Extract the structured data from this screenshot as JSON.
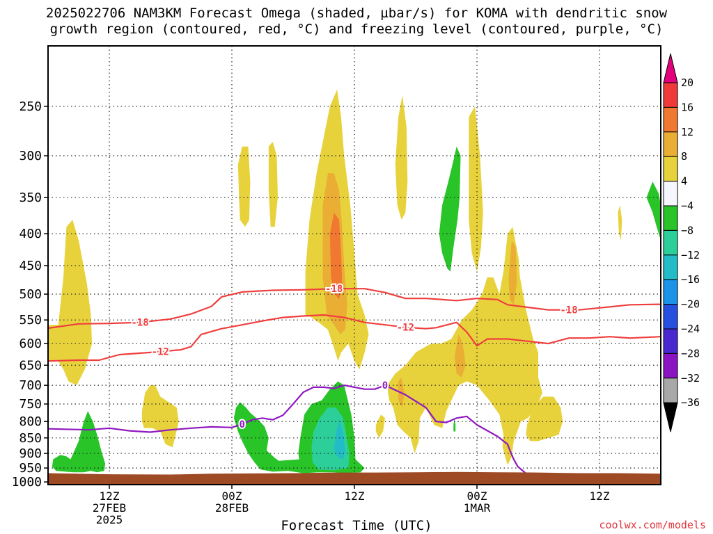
{
  "title": {
    "line1": "2025022706 NAM3KM Forecast Omega (shaded, µbar/s) for KOMA with dendritic snow",
    "line2": "growth region (contoured, red, °C) and freezing level (contoured, purple, °C)"
  },
  "credit": "coolwx.com/models",
  "chart_data": {
    "type": "time-height contour",
    "x_axis": {
      "label": "Forecast Time (UTC)",
      "ticks": [
        {
          "lines": [
            "12Z",
            "27FEB",
            "2025"
          ],
          "hour": 6
        },
        {
          "lines": [
            "00Z",
            "28FEB"
          ],
          "hour": 18
        },
        {
          "lines": [
            "12Z"
          ],
          "hour": 30
        },
        {
          "lines": [
            "00Z",
            "1MAR"
          ],
          "hour": 42
        },
        {
          "lines": [
            "12Z"
          ],
          "hour": 54
        }
      ],
      "range_hours": [
        0,
        60
      ]
    },
    "y_axis": {
      "units": "hPa",
      "ticks": [
        250,
        300,
        350,
        400,
        450,
        500,
        550,
        600,
        650,
        700,
        750,
        800,
        850,
        900,
        950,
        1000
      ],
      "range": [
        200,
        1010
      ]
    },
    "colorbar": {
      "labels": [
        "20",
        "16",
        "12",
        "8",
        "4",
        "−4",
        "−8",
        "−12",
        "−16",
        "−20",
        "−24",
        "−28",
        "−32",
        "−36"
      ],
      "colors": [
        "#e4007c",
        "#f03a3a",
        "#f07830",
        "#ebae35",
        "#e8d23c",
        "#f6f6ff",
        "#28c428",
        "#2ccf9a",
        "#22bcc8",
        "#1b93e8",
        "#2550e0",
        "#4a28d0",
        "#8a14c4",
        "#a8a8a8",
        "#000000"
      ]
    },
    "contours": [
      {
        "name": "-18",
        "color": "#ef3e3e",
        "points": [
          [
            0,
            567
          ],
          [
            3,
            558
          ],
          [
            6,
            557
          ],
          [
            9,
            555
          ],
          [
            12,
            548
          ],
          [
            14,
            538
          ],
          [
            16,
            523
          ],
          [
            17,
            505
          ],
          [
            19,
            496
          ],
          [
            22,
            493
          ],
          [
            25,
            492
          ],
          [
            28,
            490
          ],
          [
            31,
            490
          ],
          [
            33,
            497
          ],
          [
            35,
            508
          ],
          [
            37,
            508
          ],
          [
            40,
            512
          ],
          [
            42,
            508
          ],
          [
            44,
            510
          ],
          [
            45,
            520
          ],
          [
            47,
            525
          ],
          [
            49,
            530
          ],
          [
            52,
            530
          ],
          [
            54,
            526
          ],
          [
            57,
            520
          ],
          [
            60,
            519
          ]
        ],
        "labels": [
          [
            9,
            "-18"
          ],
          [
            28,
            "-18"
          ],
          [
            51,
            "-18"
          ]
        ]
      },
      {
        "name": "-12",
        "color": "#ef3e3e",
        "points": [
          [
            0,
            640
          ],
          [
            3,
            638
          ],
          [
            5,
            638
          ],
          [
            7,
            625
          ],
          [
            10,
            620
          ],
          [
            13,
            614
          ],
          [
            14,
            607
          ],
          [
            15,
            580
          ],
          [
            17,
            568
          ],
          [
            19,
            560
          ],
          [
            21,
            552
          ],
          [
            23,
            545
          ],
          [
            25,
            542
          ],
          [
            27,
            540
          ],
          [
            29,
            545
          ],
          [
            31,
            555
          ],
          [
            33,
            560
          ],
          [
            35,
            565
          ],
          [
            37,
            568
          ],
          [
            38,
            566
          ],
          [
            40,
            555
          ],
          [
            41,
            575
          ],
          [
            42,
            605
          ],
          [
            43,
            590
          ],
          [
            45,
            590
          ],
          [
            47,
            595
          ],
          [
            49,
            600
          ],
          [
            51,
            588
          ],
          [
            53,
            588
          ],
          [
            55,
            585
          ],
          [
            57,
            588
          ],
          [
            60,
            585
          ]
        ],
        "labels": [
          [
            11,
            "-12"
          ],
          [
            35,
            "-12"
          ]
        ]
      },
      {
        "name": "0",
        "color": "#9018c0",
        "points": [
          [
            0,
            822
          ],
          [
            4,
            825
          ],
          [
            6,
            820
          ],
          [
            8,
            828
          ],
          [
            10,
            832
          ],
          [
            12,
            825
          ],
          [
            14,
            820
          ],
          [
            16,
            816
          ],
          [
            18,
            818
          ],
          [
            19,
            808
          ],
          [
            20,
            795
          ],
          [
            21,
            790
          ],
          [
            22,
            795
          ],
          [
            23,
            782
          ],
          [
            24,
            750
          ],
          [
            25,
            718
          ],
          [
            26,
            705
          ],
          [
            27,
            705
          ],
          [
            28,
            708
          ],
          [
            29,
            700
          ],
          [
            30,
            705
          ],
          [
            31,
            710
          ],
          [
            32,
            710
          ],
          [
            33,
            700
          ],
          [
            35,
            725
          ],
          [
            37,
            760
          ],
          [
            38,
            800
          ],
          [
            39,
            803
          ],
          [
            40,
            790
          ],
          [
            41,
            785
          ],
          [
            42,
            810
          ],
          [
            44,
            845
          ],
          [
            45,
            870
          ],
          [
            45.2,
            888
          ],
          [
            45.6,
            920
          ],
          [
            46,
            945
          ],
          [
            47,
            975
          ]
        ],
        "labels": [
          [
            19,
            "0"
          ],
          [
            33,
            "0"
          ]
        ]
      }
    ],
    "omega_regions": [
      {
        "value_range": "4 to 8",
        "color": "#e8d23c"
      },
      {
        "value_range": "8 to 12",
        "color": "#ebae35"
      },
      {
        "value_range": "12 to 16",
        "color": "#f07830"
      },
      {
        "value_range": "-4 to -8",
        "color": "#28c428"
      },
      {
        "value_range": "-8 to -12",
        "color": "#2ccf9a"
      },
      {
        "value_range": "-12 to -16",
        "color": "#22bcc8"
      }
    ],
    "ground_color": "#9d4a25"
  }
}
